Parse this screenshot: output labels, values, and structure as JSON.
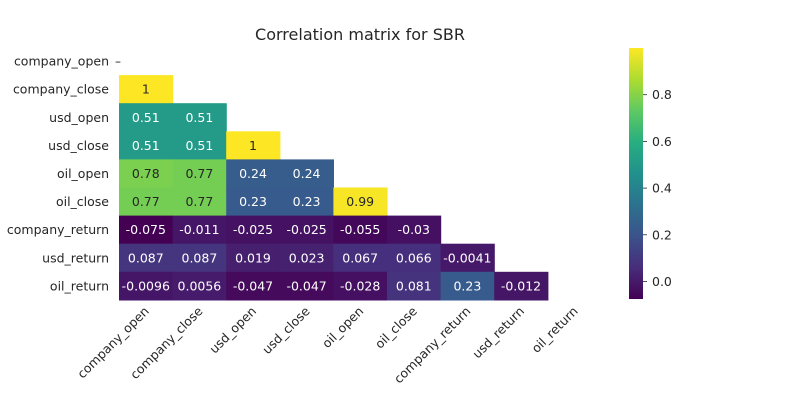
{
  "chart_data": {
    "type": "heatmap",
    "title": "Correlation matrix for SBR",
    "mask": "lower-triangle",
    "rows": [
      "company_open",
      "company_close",
      "usd_open",
      "usd_close",
      "oil_open",
      "oil_close",
      "company_return",
      "usd_return",
      "oil_return"
    ],
    "columns": [
      "company_open",
      "company_close",
      "usd_open",
      "usd_close",
      "oil_open",
      "oil_close",
      "company_return",
      "usd_return",
      "oil_return"
    ],
    "row_tick_marks": [
      "–",
      "",
      "",
      "",
      "",
      "",
      "",
      "",
      ""
    ],
    "values": [
      [
        null,
        null,
        null,
        null,
        null,
        null,
        null,
        null,
        null
      ],
      [
        1,
        null,
        null,
        null,
        null,
        null,
        null,
        null,
        null
      ],
      [
        0.51,
        0.51,
        null,
        null,
        null,
        null,
        null,
        null,
        null
      ],
      [
        0.51,
        0.51,
        1,
        null,
        null,
        null,
        null,
        null,
        null
      ],
      [
        0.78,
        0.77,
        0.24,
        0.24,
        null,
        null,
        null,
        null,
        null
      ],
      [
        0.77,
        0.77,
        0.23,
        0.23,
        0.99,
        null,
        null,
        null,
        null
      ],
      [
        -0.075,
        -0.011,
        -0.025,
        -0.025,
        -0.055,
        -0.03,
        null,
        null,
        null
      ],
      [
        0.087,
        0.087,
        0.019,
        0.023,
        0.067,
        0.066,
        -0.0041,
        null,
        null
      ],
      [
        -0.0096,
        0.0056,
        -0.047,
        -0.047,
        -0.028,
        0.081,
        0.23,
        -0.012,
        null
      ]
    ],
    "labels": [
      [
        null,
        null,
        null,
        null,
        null,
        null,
        null,
        null,
        null
      ],
      [
        "1",
        null,
        null,
        null,
        null,
        null,
        null,
        null,
        null
      ],
      [
        "0.51",
        "0.51",
        null,
        null,
        null,
        null,
        null,
        null,
        null
      ],
      [
        "0.51",
        "0.51",
        "1",
        null,
        null,
        null,
        null,
        null,
        null
      ],
      [
        "0.78",
        "0.77",
        "0.24",
        "0.24",
        null,
        null,
        null,
        null,
        null
      ],
      [
        "0.77",
        "0.77",
        "0.23",
        "0.23",
        "0.99",
        null,
        null,
        null,
        null
      ],
      [
        "-0.075",
        "-0.011",
        "-0.025",
        "-0.025",
        "-0.055",
        "-0.03",
        null,
        null,
        null
      ],
      [
        "0.087",
        "0.087",
        "0.019",
        "0.023",
        "0.067",
        "0.066",
        "-0.0041",
        null,
        null
      ],
      [
        "-0.0096",
        "0.0056",
        "-0.047",
        "-0.047",
        "-0.028",
        "0.081",
        "0.23",
        "-0.012",
        null
      ]
    ],
    "colormap": "viridis",
    "color_range": [
      -0.075,
      1
    ],
    "colorbar": {
      "ticks": [
        0.0,
        0.2,
        0.4,
        0.6,
        0.8
      ],
      "tick_labels": [
        "0.0",
        "0.2",
        "0.4",
        "0.6",
        "0.8"
      ],
      "placement": "right"
    },
    "grid": false
  }
}
